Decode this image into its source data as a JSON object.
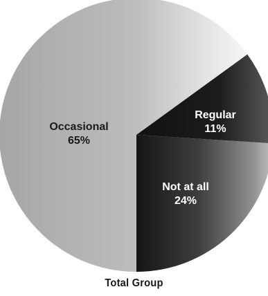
{
  "chart_data": {
    "type": "pie",
    "title": "Total Group",
    "slices": [
      {
        "label": "Occasional",
        "value": 65,
        "value_label": "65%",
        "color": "#b3b3b3"
      },
      {
        "label": "Regular",
        "value": 11,
        "value_label": "11%",
        "color": "#1a1a1a"
      },
      {
        "label": "Not at all",
        "value": 24,
        "value_label": "24%",
        "color": "#4d4d4d"
      }
    ]
  }
}
